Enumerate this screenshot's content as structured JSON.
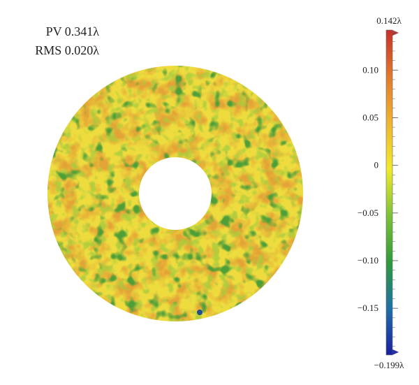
{
  "stats": {
    "pv": "PV 0.341λ",
    "rms": "RMS 0.020λ"
  },
  "colorbar": {
    "max_label": "0.142λ",
    "min_label": "−0.199λ",
    "max": 0.142,
    "min": -0.199,
    "ticks": [
      {
        "value": 0.1,
        "label": "0.10"
      },
      {
        "value": 0.05,
        "label": "0.05"
      },
      {
        "value": 0,
        "label": "0"
      },
      {
        "value": -0.05,
        "label": "−0.05"
      },
      {
        "value": -0.1,
        "label": "−0.10"
      },
      {
        "value": -0.15,
        "label": "−0.15"
      }
    ],
    "color_stops": [
      "#1a1f9e",
      "#1f6fa8",
      "#2f9a3a",
      "#7cc23a",
      "#f2ea28",
      "#f0b430",
      "#e07a2c",
      "#c6302a"
    ]
  },
  "map": {
    "shape": "annulus",
    "dominant_colors": [
      "#eddc3c",
      "#e6b43a",
      "#e09a36",
      "#5aa83a",
      "#9cc63e"
    ]
  }
}
